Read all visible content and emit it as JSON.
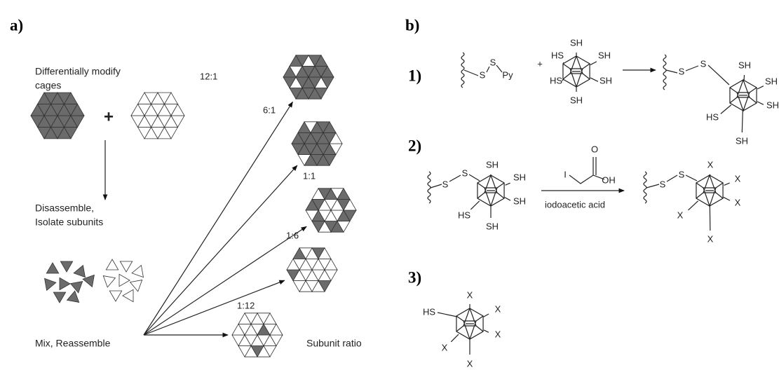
{
  "panel_a": {
    "label": "a)",
    "step1": [
      "Differentially modify",
      "cages"
    ],
    "plus": "+",
    "step2": [
      "Disassemble,",
      "Isolate subunits"
    ],
    "step3": "Mix, Reassemble",
    "ratios": [
      "12:1",
      "6:1",
      "1:1",
      "1:6",
      "1:12"
    ],
    "ratio_caption": "Subunit ratio"
  },
  "panel_b": {
    "label": "b)",
    "steps": [
      {
        "number": "1)",
        "labels": [
          "S",
          "S",
          "Py",
          "+",
          "SH",
          "HS",
          "SH",
          "HS",
          "SH",
          "SH",
          "S",
          "S",
          "SH",
          "SH",
          "SH",
          "HS",
          "SH"
        ]
      },
      {
        "number": "2)",
        "labels": [
          "S",
          "S",
          "SH",
          "SH",
          "SH",
          "HS",
          "SH",
          "I",
          "O",
          "OH",
          "iodoacetic acid",
          "S",
          "S",
          "X",
          "X",
          "X",
          "X",
          "X"
        ]
      },
      {
        "number": "3)",
        "labels": [
          "HS",
          "X",
          "X",
          "X",
          "X",
          "X"
        ]
      }
    ]
  }
}
